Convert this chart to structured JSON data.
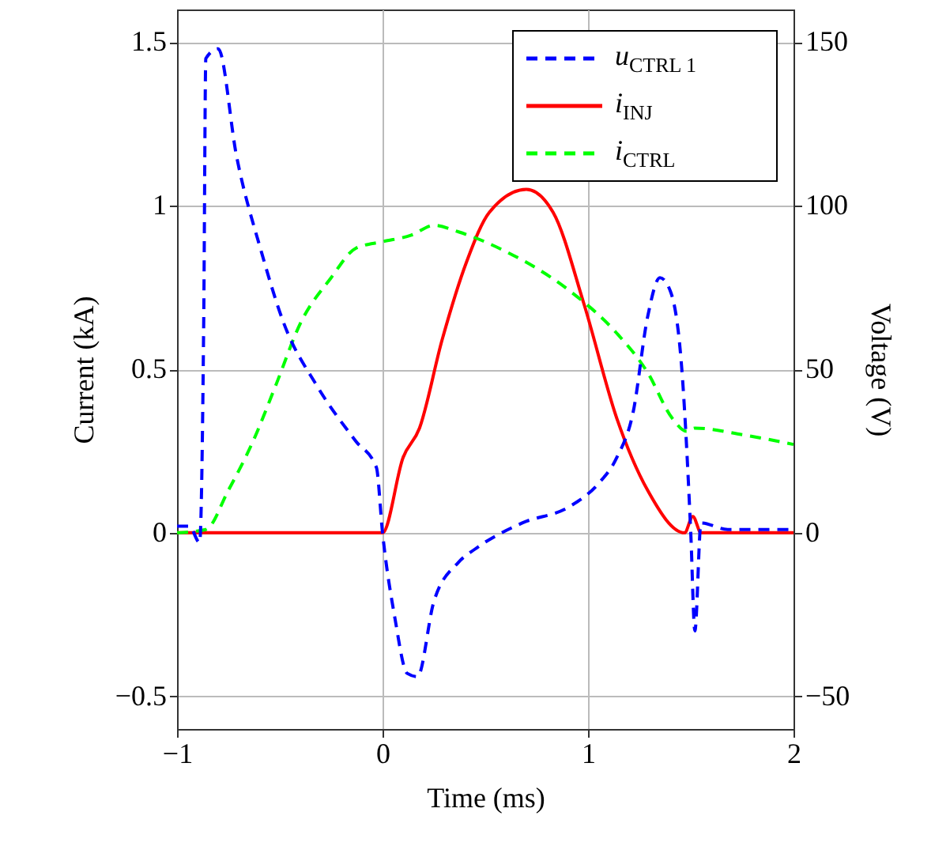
{
  "chart_data": {
    "type": "line",
    "xlabel": "Time (ms)",
    "ylabel": "Current (kA)",
    "y2label": "Voltage (V)",
    "xlim": [
      -1,
      2
    ],
    "xticks": [
      {
        "value": -1,
        "label": "−1"
      },
      0,
      1,
      2
    ],
    "ylim": [
      -0.6,
      1.6
    ],
    "yticks": [
      {
        "value": -0.5,
        "label": "−0.5"
      },
      0,
      0.5,
      1,
      1.5
    ],
    "y2lim": [
      -60,
      160
    ],
    "y2ticks": [
      {
        "value": -50,
        "label": "−50"
      },
      0,
      50,
      100,
      150
    ],
    "grid": true,
    "legend": "top right",
    "series": [
      {
        "name": "u$_{CTRL 1}$",
        "color": "#0000ff",
        "axis": "y2",
        "line_style": "dashed",
        "x": [
          -1,
          -0.94,
          -0.89,
          -0.87,
          -0.86,
          -0.8,
          -0.71,
          -0.59,
          -0.48,
          -0.32,
          -0.13,
          -0.03,
          0,
          0.06,
          0.12,
          0.17,
          0.25,
          0.37,
          0.45,
          0.68,
          0.91,
          1.05,
          1.14,
          1.22,
          1.29,
          1.35,
          1.4,
          1.46,
          1.5,
          1.52,
          1.55,
          1.68,
          2
        ],
        "values": [
          2,
          2,
          -3,
          66,
          145,
          148,
          115,
          86,
          64,
          45,
          28,
          20,
          0,
          -26,
          -43,
          -44,
          -21,
          -9,
          -5,
          3,
          8,
          15,
          23,
          37,
          66,
          78,
          74,
          47,
          0,
          -30,
          3,
          1,
          1
        ]
      },
      {
        "name": "i$_{INJ}$",
        "color": "#ff0000",
        "line_style": "solid",
        "x": [
          -1,
          0,
          0.1,
          0.18,
          0.29,
          0.41,
          0.52,
          0.7,
          0.83,
          0.98,
          1.14,
          1.29,
          1.47,
          1.51,
          1.55,
          2
        ],
        "values": [
          0,
          0,
          0.23,
          0.32,
          0.59,
          0.83,
          0.98,
          1.05,
          0.98,
          0.7,
          0.35,
          0.13,
          0,
          0.05,
          0,
          0
        ]
      },
      {
        "name": "i$_{CTRL}$",
        "color": "#00ff00",
        "line_style": "dashed",
        "x": [
          -1,
          -0.86,
          -0.75,
          -0.63,
          -0.52,
          -0.4,
          -0.25,
          -0.13,
          0,
          0.14,
          0.25,
          0.37,
          0.6,
          0.91,
          1.14,
          1.29,
          1.41,
          1.48,
          1.52,
          1.75,
          2
        ],
        "values": [
          0,
          0.01,
          0.13,
          0.28,
          0.45,
          0.64,
          0.78,
          0.87,
          0.89,
          0.91,
          0.94,
          0.92,
          0.86,
          0.74,
          0.61,
          0.49,
          0.35,
          0.31,
          0.32,
          0.3,
          0.27
        ]
      }
    ]
  }
}
